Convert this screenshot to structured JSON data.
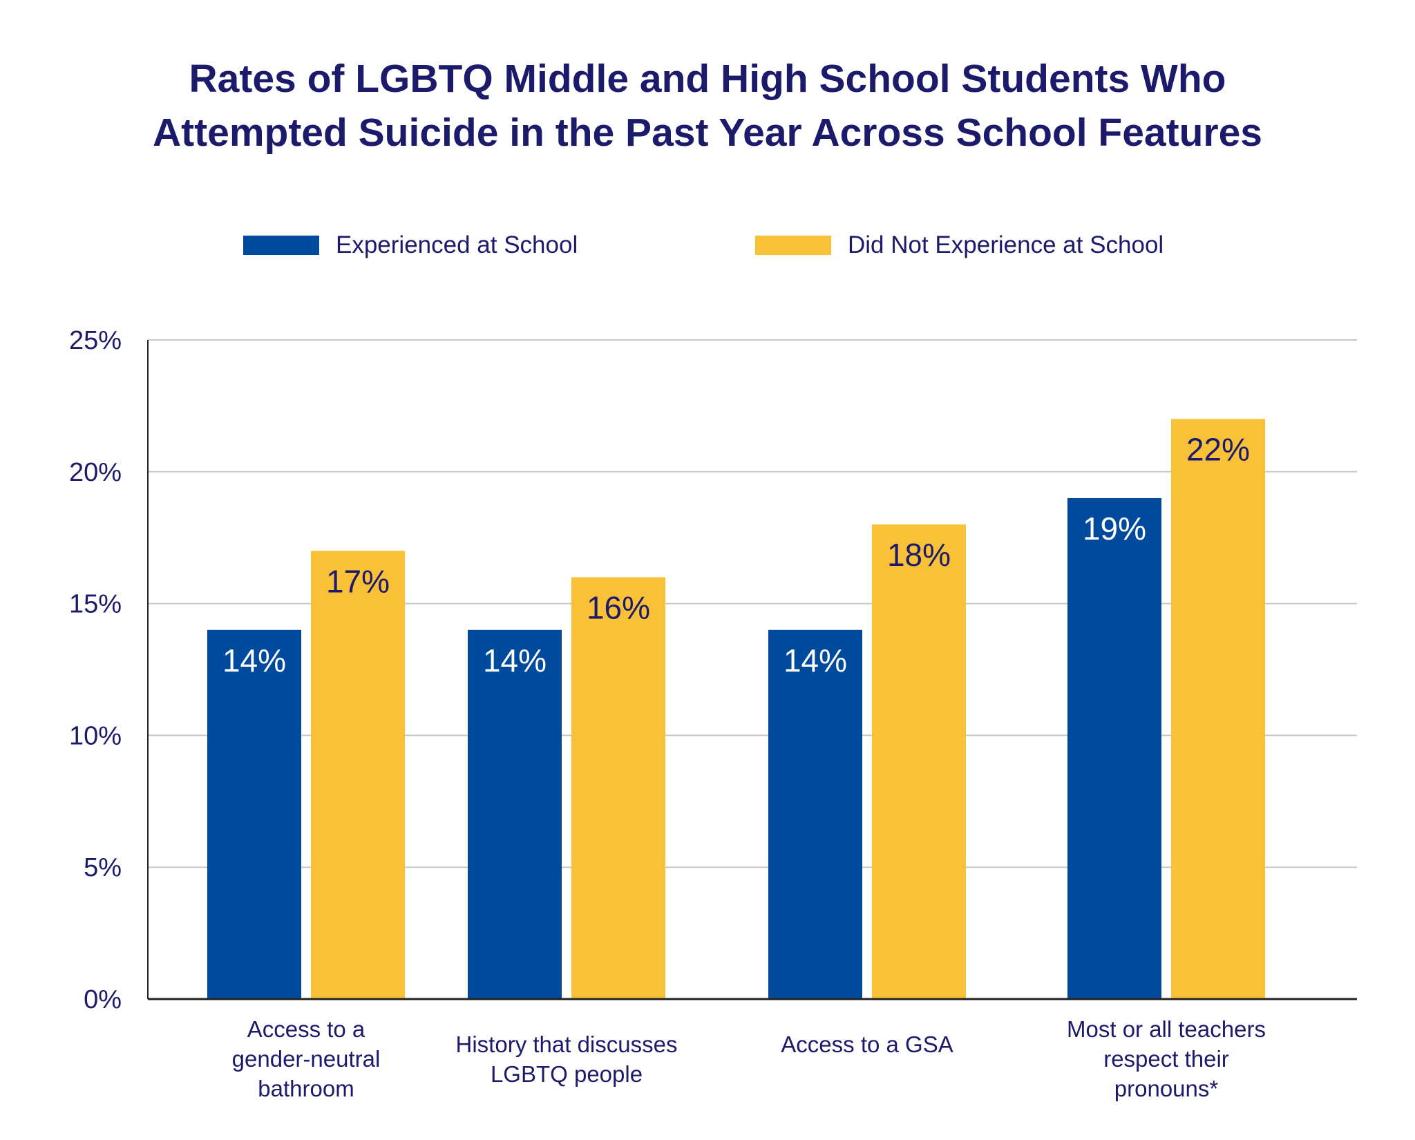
{
  "chart_data": {
    "type": "bar",
    "title_lines": [
      "Rates of LGBTQ Middle and High School Students Who",
      "Attempted Suicide in the Past Year Across School Features"
    ],
    "categories": [
      "Access to a\ngender-neutral\nbathroom",
      "History that discusses\nLGBTQ people",
      "Access to a GSA",
      "Most or all teachers\nrespect their\npronouns*"
    ],
    "series": [
      {
        "name": "Experienced at School",
        "color": "#004a9e",
        "values": [
          14,
          14,
          14,
          19
        ],
        "labels": [
          "14%",
          "14%",
          "14%",
          "19%"
        ]
      },
      {
        "name": "Did Not Experience at School",
        "color": "#f8c137",
        "values": [
          17,
          16,
          18,
          22
        ],
        "labels": [
          "17%",
          "16%",
          "18%",
          "22%"
        ]
      }
    ],
    "yticks": [
      0,
      5,
      10,
      15,
      20,
      25
    ],
    "ytick_labels": [
      "0%",
      "5%",
      "10%",
      "15%",
      "20%",
      "25%"
    ],
    "ylim": [
      0,
      25
    ],
    "xlabel": "",
    "ylabel": "",
    "grid": true,
    "legend_position": "top"
  }
}
